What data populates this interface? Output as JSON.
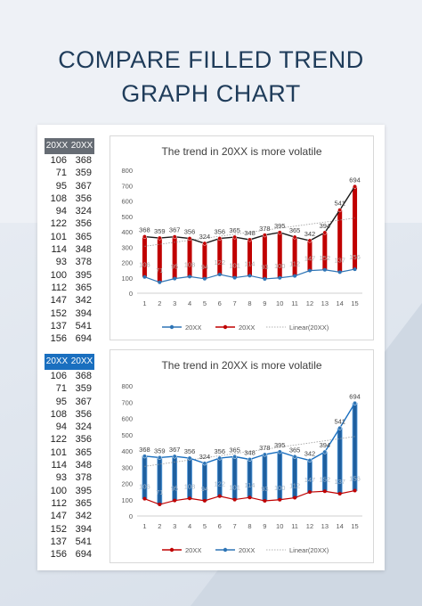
{
  "page_title_line1": "COMPARE FILLED TREND",
  "page_title_line2": "GRAPH CHART",
  "tables": [
    {
      "headers": [
        "20XX",
        "20XX"
      ],
      "rows": [
        [
          106,
          368
        ],
        [
          71,
          359
        ],
        [
          95,
          367
        ],
        [
          108,
          356
        ],
        [
          94,
          324
        ],
        [
          122,
          356
        ],
        [
          101,
          365
        ],
        [
          114,
          348
        ],
        [
          93,
          378
        ],
        [
          100,
          395
        ],
        [
          112,
          365
        ],
        [
          147,
          342
        ],
        [
          152,
          394
        ],
        [
          137,
          541
        ],
        [
          156,
          694
        ]
      ]
    },
    {
      "headers": [
        "20XX",
        "20XX"
      ],
      "rows": [
        [
          106,
          368
        ],
        [
          71,
          359
        ],
        [
          95,
          367
        ],
        [
          108,
          356
        ],
        [
          94,
          324
        ],
        [
          122,
          356
        ],
        [
          101,
          365
        ],
        [
          114,
          348
        ],
        [
          93,
          378
        ],
        [
          100,
          395
        ],
        [
          112,
          365
        ],
        [
          147,
          342
        ],
        [
          152,
          394
        ],
        [
          137,
          541
        ],
        [
          156,
          694
        ]
      ]
    }
  ],
  "chart_data": [
    {
      "type": "line",
      "title": "The trend in 20XX is more volatile",
      "categories": [
        1,
        2,
        3,
        4,
        5,
        6,
        7,
        8,
        9,
        10,
        11,
        12,
        13,
        14,
        15
      ],
      "series": [
        {
          "name": "20XX",
          "values": [
            106,
            71,
            95,
            108,
            94,
            122,
            101,
            114,
            93,
            100,
            112,
            147,
            152,
            137,
            156
          ],
          "color": "#2e75b6"
        },
        {
          "name": "20XX",
          "values": [
            368,
            359,
            367,
            356,
            324,
            356,
            365,
            348,
            378,
            395,
            365,
            342,
            394,
            541,
            694
          ],
          "color": "#c00000"
        }
      ],
      "trendline": "Linear(20XX)",
      "fill_color": "#c00000",
      "line_color": "#1a1a1a",
      "ylim": [
        0,
        800
      ],
      "yticks": [
        0,
        100,
        200,
        300,
        400,
        500,
        600,
        700,
        800
      ],
      "xlabel": "",
      "ylabel": "",
      "legend_position": "bottom"
    },
    {
      "type": "line",
      "title": "The trend in 20XX is more volatile",
      "categories": [
        1,
        2,
        3,
        4,
        5,
        6,
        7,
        8,
        9,
        10,
        11,
        12,
        13,
        14,
        15
      ],
      "series": [
        {
          "name": "20XX",
          "values": [
            106,
            71,
            95,
            108,
            94,
            122,
            101,
            114,
            93,
            100,
            112,
            147,
            152,
            137,
            156
          ],
          "color": "#c00000"
        },
        {
          "name": "20XX",
          "values": [
            368,
            359,
            367,
            356,
            324,
            356,
            365,
            348,
            378,
            395,
            365,
            342,
            394,
            541,
            694
          ],
          "color": "#2e75b6"
        }
      ],
      "trendline": "Linear(20XX)",
      "fill_color": "#1a6fbf",
      "line_color": "#1a6fbf",
      "ylim": [
        0,
        800
      ],
      "yticks": [
        0,
        100,
        200,
        300,
        400,
        500,
        600,
        700,
        800
      ],
      "xlabel": "",
      "ylabel": "",
      "legend_position": "bottom"
    }
  ]
}
